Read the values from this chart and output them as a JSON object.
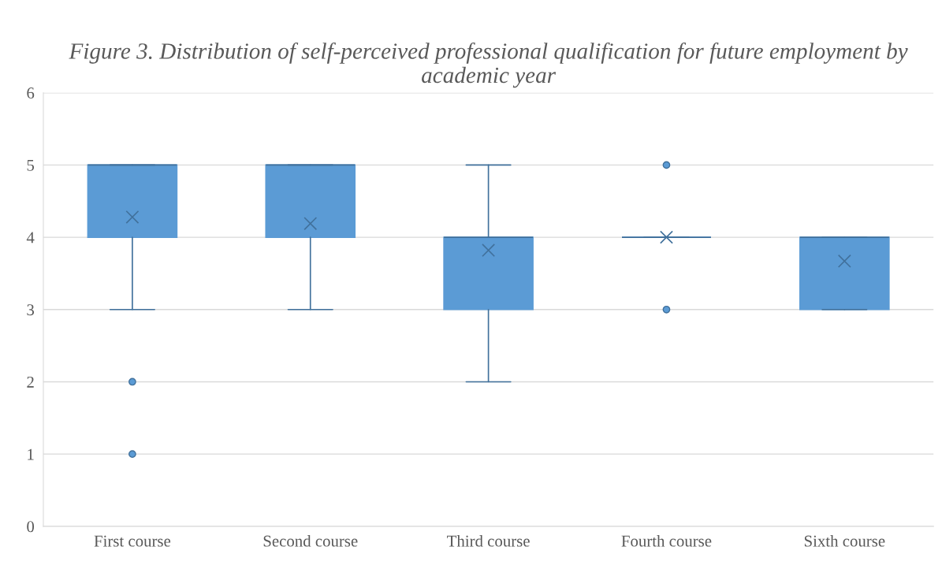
{
  "chart_data": {
    "type": "box",
    "title": "Figure 3. Distribution of self-perceived professional qualification for future employment by academic year",
    "categories": [
      "First course",
      "Second course",
      "Third course",
      "Fourth course",
      "Sixth course"
    ],
    "color": "#5b9bd5",
    "boxes": [
      {
        "low": 3,
        "q1": 4,
        "median": 5,
        "q3": 5,
        "high": 5,
        "mean": 4.28,
        "outliers": [
          2,
          1
        ]
      },
      {
        "low": 3,
        "q1": 4,
        "median": 5,
        "q3": 5,
        "high": 5,
        "mean": 4.19
      },
      {
        "low": 2,
        "q1": 3,
        "median": 4,
        "q3": 4,
        "high": 5,
        "mean": 3.82
      },
      {
        "low": 4,
        "q1": 4,
        "median": 4,
        "q3": 4,
        "high": 4,
        "mean": 4.0,
        "outliers": [
          5,
          3
        ]
      },
      {
        "low": 3,
        "q1": 3,
        "median": 4,
        "q3": 4,
        "high": 4,
        "mean": 3.67
      }
    ],
    "ylim": [
      0,
      6
    ],
    "yticks": [
      0,
      1,
      2,
      3,
      4,
      5,
      6
    ],
    "grid": "y"
  }
}
